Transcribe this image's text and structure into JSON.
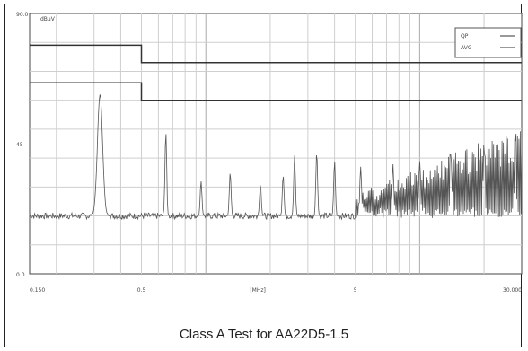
{
  "caption": "Class A Test for AA22D5-1.5",
  "chart_data": {
    "type": "line",
    "title": "",
    "xscale": "log",
    "xlim": [
      0.15,
      30
    ],
    "ylim": [
      0,
      90
    ],
    "yunit": "dBuV",
    "ytick_labels": [
      "90.0",
      "45",
      "0.0"
    ],
    "ytick_values": [
      90,
      45,
      0
    ],
    "xtick_labels": [
      "0.150",
      "0.5",
      "[MHz]",
      "5",
      "30.000"
    ],
    "xtick_values": [
      0.15,
      0.5,
      1.75,
      5,
      30
    ],
    "legend_position": "top-right",
    "limit_lines": [
      {
        "name": "QP",
        "color": "#333333",
        "points": [
          [
            0.15,
            79
          ],
          [
            0.5,
            79
          ],
          [
            0.5,
            73
          ],
          [
            30,
            73
          ]
        ]
      },
      {
        "name": "AVG",
        "color": "#333333",
        "points": [
          [
            0.15,
            66
          ],
          [
            0.5,
            66
          ],
          [
            0.5,
            60
          ],
          [
            30,
            60
          ]
        ]
      }
    ],
    "series": [
      {
        "color": "#555555",
        "noise_floor": 20,
        "peaks": [
          {
            "x": 0.32,
            "y": 62
          },
          {
            "x": 0.65,
            "y": 49
          },
          {
            "x": 0.95,
            "y": 32
          },
          {
            "x": 1.3,
            "y": 35
          },
          {
            "x": 1.8,
            "y": 31
          },
          {
            "x": 2.3,
            "y": 34
          },
          {
            "x": 2.6,
            "y": 41
          },
          {
            "x": 3.3,
            "y": 42
          },
          {
            "x": 4.0,
            "y": 39
          },
          {
            "x": 5.3,
            "y": 37
          },
          {
            "x": 7.5,
            "y": 38
          },
          {
            "x": 10,
            "y": 39
          },
          {
            "x": 14,
            "y": 42
          },
          {
            "x": 20,
            "y": 44
          },
          {
            "x": 28,
            "y": 46
          }
        ]
      }
    ]
  }
}
